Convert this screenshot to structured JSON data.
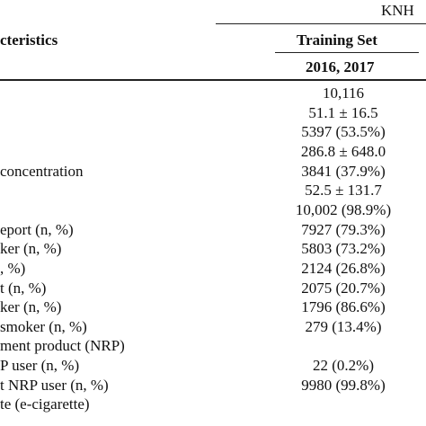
{
  "table": {
    "group_header": "KNH",
    "col_header_left": "cteristics",
    "col_header_right": "Training Set",
    "subheader_years": "2016, 2017",
    "rows": [
      {
        "label": "",
        "value": "10,116"
      },
      {
        "label": "",
        "value": "51.1 ± 16.5"
      },
      {
        "label": "",
        "value": "5397 (53.5%)"
      },
      {
        "label": "",
        "value": "286.8 ± 648.0"
      },
      {
        "label": "concentration",
        "value": "3841 (37.9%)"
      },
      {
        "label": "",
        "value": "52.5 ± 131.7"
      },
      {
        "label": "",
        "value": "10,002 (98.9%)"
      },
      {
        "label": "eport (n, %)",
        "value": "7927 (79.3%)"
      },
      {
        "label": "ker (n, %)",
        "value": "5803 (73.2%)"
      },
      {
        "label": ", %)",
        "value": "2124 (26.8%)"
      },
      {
        "label": "t (n, %)",
        "value": "2075 (20.7%)"
      },
      {
        "label": "ker (n, %)",
        "value": "1796 (86.6%)"
      },
      {
        "label": "smoker (n, %)",
        "value": "279 (13.4%)"
      },
      {
        "label": "ment product (NRP)",
        "value": ""
      },
      {
        "label": "P user (n, %)",
        "value": "22 (0.2%)"
      },
      {
        "label": "t NRP user (n, %)",
        "value": "9980 (99.8%)"
      },
      {
        "label": "te (e-cigarette)",
        "value": ""
      }
    ]
  }
}
